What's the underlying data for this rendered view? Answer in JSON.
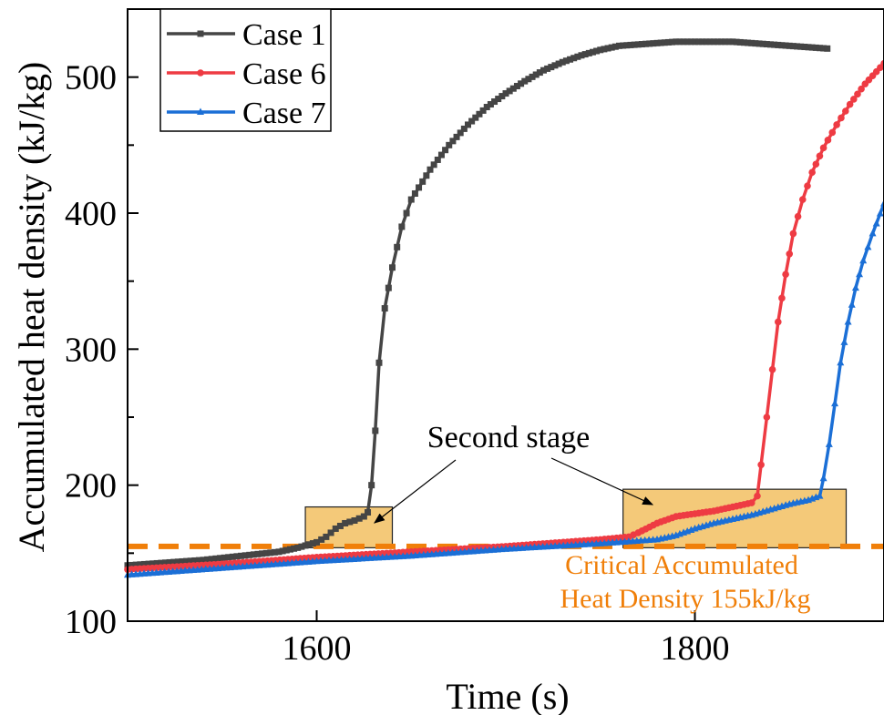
{
  "chart_data": {
    "type": "line",
    "xlabel": "Time (s)",
    "ylabel": "Accumulated heat density (kJ/kg)",
    "xlim": [
      1500,
      1900
    ],
    "ylim": [
      100,
      550
    ],
    "x_ticks": [
      1600,
      1800
    ],
    "y_ticks": [
      100,
      200,
      300,
      400,
      500
    ],
    "legend_position": "top-left",
    "threshold": {
      "value": 155,
      "label_line1": "Critical Accumulated",
      "label_line2": "Heat Density 155kJ/kg",
      "color": "#f07f09"
    },
    "annotation": {
      "text": "Second stage",
      "boxes": [
        {
          "x0": 1594,
          "x1": 1640,
          "y0": 154,
          "y1": 184
        },
        {
          "x0": 1762,
          "x1": 1880,
          "y0": 154,
          "y1": 197
        }
      ],
      "box_color": "#f4c979"
    },
    "series": [
      {
        "name": "Case 1",
        "color": "#454545",
        "marker": "square",
        "points": [
          [
            1500,
            141
          ],
          [
            1520,
            143
          ],
          [
            1540,
            145
          ],
          [
            1560,
            148
          ],
          [
            1580,
            151
          ],
          [
            1590,
            154
          ],
          [
            1600,
            158
          ],
          [
            1605,
            162
          ],
          [
            1610,
            168
          ],
          [
            1615,
            172
          ],
          [
            1620,
            174
          ],
          [
            1625,
            177
          ],
          [
            1627,
            180
          ],
          [
            1629,
            200
          ],
          [
            1631,
            240
          ],
          [
            1633,
            290
          ],
          [
            1636,
            330
          ],
          [
            1640,
            360
          ],
          [
            1645,
            390
          ],
          [
            1650,
            410
          ],
          [
            1660,
            432
          ],
          [
            1670,
            450
          ],
          [
            1680,
            465
          ],
          [
            1690,
            478
          ],
          [
            1700,
            488
          ],
          [
            1710,
            497
          ],
          [
            1720,
            505
          ],
          [
            1730,
            511
          ],
          [
            1740,
            516
          ],
          [
            1750,
            520
          ],
          [
            1760,
            523
          ],
          [
            1770,
            524
          ],
          [
            1780,
            525
          ],
          [
            1790,
            526
          ],
          [
            1800,
            526
          ],
          [
            1810,
            526
          ],
          [
            1820,
            526
          ],
          [
            1830,
            525
          ],
          [
            1840,
            524
          ],
          [
            1850,
            523
          ],
          [
            1860,
            522
          ],
          [
            1870,
            521
          ]
        ]
      },
      {
        "name": "Case 6",
        "color": "#ee3b43",
        "marker": "circle",
        "points": [
          [
            1500,
            138
          ],
          [
            1550,
            142
          ],
          [
            1600,
            147
          ],
          [
            1650,
            151
          ],
          [
            1700,
            155
          ],
          [
            1750,
            160
          ],
          [
            1765,
            162
          ],
          [
            1770,
            165
          ],
          [
            1780,
            172
          ],
          [
            1790,
            177
          ],
          [
            1800,
            179
          ],
          [
            1810,
            181
          ],
          [
            1820,
            184
          ],
          [
            1830,
            187
          ],
          [
            1833,
            192
          ],
          [
            1835,
            215
          ],
          [
            1838,
            250
          ],
          [
            1841,
            285
          ],
          [
            1844,
            320
          ],
          [
            1848,
            355
          ],
          [
            1852,
            385
          ],
          [
            1857,
            410
          ],
          [
            1862,
            430
          ],
          [
            1868,
            448
          ],
          [
            1875,
            465
          ],
          [
            1882,
            480
          ],
          [
            1890,
            495
          ],
          [
            1900,
            510
          ]
        ]
      },
      {
        "name": "Case 7",
        "color": "#1b6fd6",
        "marker": "triangle",
        "points": [
          [
            1500,
            134
          ],
          [
            1550,
            139
          ],
          [
            1600,
            144
          ],
          [
            1650,
            148
          ],
          [
            1700,
            153
          ],
          [
            1750,
            157
          ],
          [
            1780,
            160
          ],
          [
            1790,
            163
          ],
          [
            1800,
            168
          ],
          [
            1810,
            172
          ],
          [
            1820,
            175
          ],
          [
            1830,
            178
          ],
          [
            1840,
            182
          ],
          [
            1850,
            186
          ],
          [
            1860,
            189
          ],
          [
            1866,
            192
          ],
          [
            1868,
            205
          ],
          [
            1871,
            230
          ],
          [
            1874,
            260
          ],
          [
            1877,
            290
          ],
          [
            1881,
            320
          ],
          [
            1885,
            345
          ],
          [
            1889,
            365
          ],
          [
            1894,
            385
          ],
          [
            1900,
            407
          ]
        ]
      }
    ]
  }
}
